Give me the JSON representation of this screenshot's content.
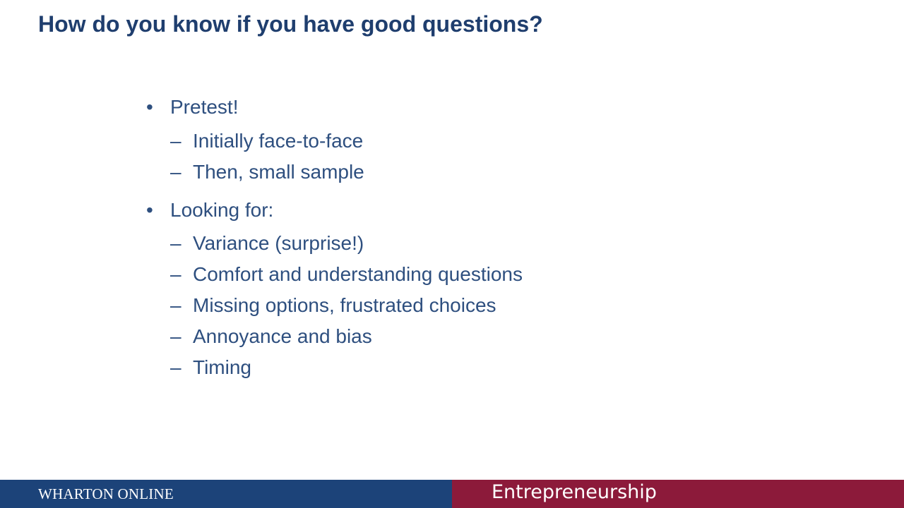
{
  "slide": {
    "title": "How do you know if you have good questions?",
    "bullet_marker": "•",
    "sub_marker": "–",
    "sections": [
      {
        "label": "Pretest!",
        "items": [
          "Initially face-to-face",
          "Then, small sample"
        ]
      },
      {
        "label": "Looking for:",
        "items": [
          "Variance (surprise!)",
          "Comfort and understanding questions",
          "Missing options, frustrated choices",
          "Annoyance and bias",
          "Timing"
        ]
      }
    ]
  },
  "footer": {
    "left_text": "WHARTON ONLINE",
    "right_text": "Entrepreneurship",
    "left_color": "#1c4379",
    "right_color": "#8c1a3a"
  },
  "colors": {
    "title": "#1f3e6e",
    "body_text": "#2e4f7f",
    "background": "#ffffff"
  }
}
